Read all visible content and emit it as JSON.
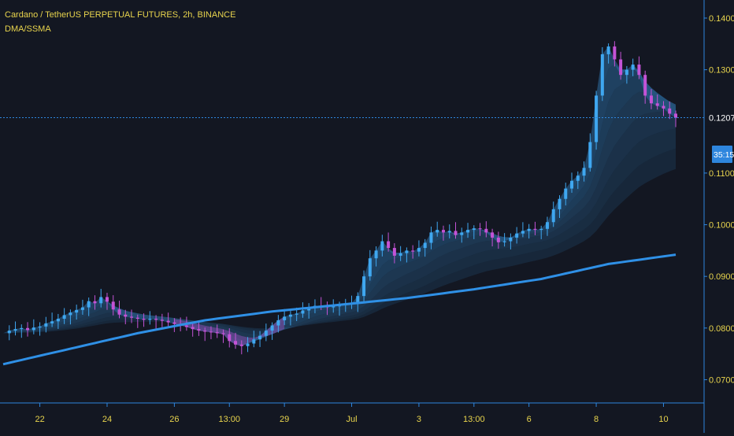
{
  "header": {
    "title": "Cardano / TetherUS PERPETUAL FUTURES, 2h, BINANCE",
    "indicator": "DMA/SSMA"
  },
  "price_tag": {
    "value": "0.12072",
    "countdown": "35:15"
  },
  "colors": {
    "background": "#131722",
    "axis_text": "#e8d44d",
    "axis_line": "#2e86de",
    "up_candle": "#3fa7f0",
    "down_candle": "#c453d6",
    "ribbon": "#2d6ea3",
    "ssma_line": "#2f90e6",
    "price_line": "#2e86de"
  },
  "chart_data": {
    "type": "line",
    "title": "Cardano / TetherUS PERPETUAL FUTURES, 2h, BINANCE",
    "indicator": "DMA/SSMA",
    "y_ticks": [
      "0.14000",
      "0.13000",
      "0.11000",
      "0.10000",
      "0.09000",
      "0.08000",
      "0.07000"
    ],
    "ylim": [
      0.0655,
      0.1435
    ],
    "x_ticks": [
      "22",
      "24",
      "26",
      "13:00",
      "29",
      "Jul",
      "3",
      "13:00",
      "6",
      "8",
      "10"
    ],
    "x_tick_index": [
      6,
      17,
      28,
      37,
      46,
      57,
      68,
      77,
      86,
      97,
      108
    ],
    "series": [
      {
        "name": "price",
        "values": [
          0.079,
          0.0795,
          0.0798,
          0.08,
          0.0796,
          0.0801,
          0.0803,
          0.0809,
          0.0813,
          0.0818,
          0.0825,
          0.083,
          0.0835,
          0.084,
          0.0852,
          0.0848,
          0.086,
          0.0851,
          0.0836,
          0.0826,
          0.0822,
          0.082,
          0.0818,
          0.0816,
          0.0818,
          0.0816,
          0.0814,
          0.0811,
          0.0808,
          0.0805,
          0.0802,
          0.0798,
          0.0795,
          0.0793,
          0.0792,
          0.079,
          0.0788,
          0.0775,
          0.0768,
          0.0765,
          0.077,
          0.0778,
          0.0785,
          0.0795,
          0.0805,
          0.0815,
          0.0822,
          0.0826,
          0.0828,
          0.0834,
          0.084,
          0.0843,
          0.0842,
          0.084,
          0.0842,
          0.0845,
          0.0846,
          0.0848,
          0.0862,
          0.09,
          0.0935,
          0.095,
          0.0968,
          0.0955,
          0.094,
          0.0945,
          0.095,
          0.0948,
          0.0955,
          0.0965,
          0.0985,
          0.099,
          0.0985,
          0.0988,
          0.098,
          0.0985,
          0.099,
          0.0993,
          0.0992,
          0.0985,
          0.0975,
          0.0966,
          0.0968,
          0.0975,
          0.0983,
          0.0988,
          0.0992,
          0.099,
          0.0992,
          0.1005,
          0.103,
          0.105,
          0.107,
          0.1085,
          0.1095,
          0.111,
          0.116,
          0.125,
          0.133,
          0.1345,
          0.132,
          0.129,
          0.13,
          0.131,
          0.129,
          0.125,
          0.1235,
          0.123,
          0.1225,
          0.1215,
          0.1207
        ]
      },
      {
        "name": "",
        "values": [
          0.073,
          0.076,
          0.079,
          0.0815,
          0.0832,
          0.0845,
          0.0858,
          0.0875,
          0.0895,
          0.0924,
          0.0942
        ]
      }
    ]
  }
}
